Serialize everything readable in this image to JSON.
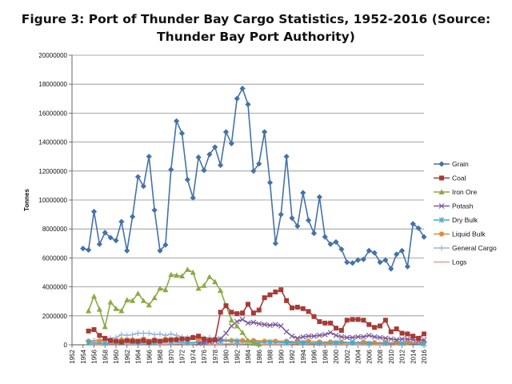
{
  "title_line1": "Figure 3: Port of Thunder Bay Cargo Statistics, 1952-2016 (Source:",
  "title_line2": "Thunder Bay Port Authority)",
  "chart_data": {
    "type": "line",
    "title": "Figure 3: Port of Thunder Bay Cargo Statistics, 1952-2016 (Source: Thunder Bay Port Authority)",
    "xlabel": "",
    "ylabel": "Tonnes",
    "xlim": [
      1952,
      2016
    ],
    "ylim": [
      0,
      20000000
    ],
    "yticks": [
      0,
      2000000,
      4000000,
      6000000,
      8000000,
      10000000,
      12000000,
      14000000,
      16000000,
      18000000,
      20000000
    ],
    "ytick_labels": [
      "0",
      "2000000",
      "4000000",
      "6000000",
      "8000000",
      "10000000",
      "12000000",
      "14000000",
      "16000000",
      "18000000",
      "20000000"
    ],
    "xticks": [
      1952,
      1954,
      1956,
      1958,
      1960,
      1962,
      1964,
      1966,
      1968,
      1970,
      1972,
      1974,
      1976,
      1978,
      1980,
      1982,
      1984,
      1986,
      1988,
      1990,
      1992,
      1994,
      1996,
      1998,
      2000,
      2002,
      2004,
      2006,
      2008,
      2010,
      2012,
      2014,
      2016
    ],
    "xtick_labels": [
      "1952",
      "1954",
      "1956",
      "1958",
      "1960",
      "1962",
      "1964",
      "1966",
      "1968",
      "1970",
      "1972",
      "1974",
      "1976",
      "1978",
      "1980",
      "1982",
      "1984",
      "1986",
      "1988",
      "1990",
      "1992",
      "1994",
      "1996",
      "1998",
      "2000",
      "2002",
      "2004",
      "2006",
      "2008",
      "2010",
      "2012",
      "2014",
      "2016"
    ],
    "legend_position": "right",
    "series": [
      {
        "name": "Grain",
        "color": "#4472A8",
        "marker": "diamond",
        "x": [
          1954,
          1955,
          1956,
          1957,
          1958,
          1959,
          1960,
          1961,
          1962,
          1963,
          1964,
          1965,
          1966,
          1967,
          1968,
          1969,
          1970,
          1971,
          1972,
          1973,
          1974,
          1975,
          1976,
          1977,
          1978,
          1979,
          1980,
          1981,
          1982,
          1983,
          1984,
          1985,
          1986,
          1987,
          1988,
          1989,
          1990,
          1991,
          1992,
          1993,
          1994,
          1995,
          1996,
          1997,
          1998,
          1999,
          2000,
          2001,
          2002,
          2003,
          2004,
          2005,
          2006,
          2007,
          2008,
          2009,
          2010,
          2011,
          2012,
          2013,
          2014,
          2015,
          2016
        ],
        "values": [
          6650000,
          6550000,
          9200000,
          6950000,
          7750000,
          7400000,
          7200000,
          8500000,
          6500000,
          8850000,
          11600000,
          10950000,
          13000000,
          9300000,
          6500000,
          6900000,
          12100000,
          15450000,
          14600000,
          11400000,
          10150000,
          12950000,
          12050000,
          13150000,
          13650000,
          12400000,
          14700000,
          13900000,
          17000000,
          17700000,
          16600000,
          12000000,
          12500000,
          14700000,
          11200000,
          7000000,
          9000000,
          13000000,
          8750000,
          8200000,
          10500000,
          8600000,
          7700000,
          10200000,
          7450000,
          6950000,
          7100000,
          6600000,
          5700000,
          5650000,
          5850000,
          5900000,
          6500000,
          6350000,
          5700000,
          5850000,
          5250000,
          6250000,
          6500000,
          5400000,
          8350000,
          8050000,
          7450000
        ]
      },
      {
        "name": "Coal",
        "color": "#A83A35",
        "marker": "square",
        "x": [
          1955,
          1956,
          1957,
          1958,
          1959,
          1960,
          1961,
          1962,
          1963,
          1964,
          1965,
          1966,
          1967,
          1968,
          1969,
          1970,
          1971,
          1972,
          1973,
          1974,
          1975,
          1976,
          1977,
          1978,
          1979,
          1980,
          1981,
          1982,
          1983,
          1984,
          1985,
          1986,
          1987,
          1988,
          1989,
          1990,
          1991,
          1992,
          1993,
          1994,
          1995,
          1996,
          1997,
          1998,
          1999,
          2000,
          2001,
          2002,
          2003,
          2004,
          2005,
          2006,
          2007,
          2008,
          2009,
          2010,
          2011,
          2012,
          2013,
          2014,
          2015,
          2016
        ],
        "values": [
          950000,
          1050000,
          650000,
          450000,
          300000,
          250000,
          200000,
          300000,
          250000,
          250000,
          300000,
          200000,
          300000,
          250000,
          300000,
          350000,
          350000,
          400000,
          400000,
          500000,
          600000,
          400000,
          300000,
          350000,
          2250000,
          2700000,
          2250000,
          2150000,
          2200000,
          2800000,
          2200000,
          2400000,
          3250000,
          3450000,
          3650000,
          3800000,
          3050000,
          2550000,
          2600000,
          2500000,
          2300000,
          1950000,
          1600000,
          1500000,
          1500000,
          1150000,
          1000000,
          1700000,
          1750000,
          1750000,
          1700000,
          1400000,
          1200000,
          1300000,
          1700000,
          900000,
          1100000,
          800000,
          750000,
          600000,
          450000,
          750000
        ]
      },
      {
        "name": "Iron Ore",
        "color": "#8BAA45",
        "marker": "triangle",
        "x": [
          1955,
          1956,
          1957,
          1958,
          1959,
          1960,
          1961,
          1962,
          1963,
          1964,
          1965,
          1966,
          1967,
          1968,
          1969,
          1970,
          1971,
          1972,
          1973,
          1974,
          1975,
          1976,
          1977,
          1978,
          1979,
          1980,
          1981,
          1982,
          1983,
          1984,
          1985,
          1986
        ],
        "values": [
          2350000,
          3350000,
          2450000,
          1250000,
          2950000,
          2500000,
          2350000,
          3100000,
          3050000,
          3550000,
          3050000,
          2750000,
          3250000,
          3900000,
          3800000,
          4850000,
          4800000,
          4750000,
          5200000,
          5000000,
          3900000,
          4100000,
          4700000,
          4350000,
          3750000,
          2700000,
          1700000,
          1300000,
          850000,
          300000,
          100000,
          50000
        ]
      },
      {
        "name": "Potash",
        "color": "#7D5A9B",
        "marker": "x",
        "x": [
          1975,
          1976,
          1977,
          1978,
          1979,
          1980,
          1981,
          1982,
          1983,
          1984,
          1985,
          1986,
          1987,
          1988,
          1989,
          1990,
          1991,
          1992,
          1993,
          1994,
          1995,
          1996,
          1997,
          1998,
          1999,
          2000,
          2001,
          2002,
          2003,
          2004,
          2005,
          2006,
          2007,
          2008,
          2009,
          2010,
          2011,
          2012,
          2013,
          2014,
          2015,
          2016
        ],
        "values": [
          100000,
          150000,
          200000,
          250000,
          400000,
          800000,
          1300000,
          1600000,
          1750000,
          1500000,
          1550000,
          1450000,
          1400000,
          1350000,
          1400000,
          1300000,
          900000,
          600000,
          450000,
          550000,
          600000,
          600000,
          650000,
          700000,
          850000,
          650000,
          550000,
          500000,
          500000,
          550000,
          550000,
          650000,
          550000,
          500000,
          450000,
          400000,
          350000,
          400000,
          400000,
          350000,
          300000,
          350000
        ]
      },
      {
        "name": "Dry Bulk",
        "color": "#46AACB",
        "marker": "asterisk",
        "x": [
          1955,
          1958,
          1961,
          1964,
          1967,
          1970,
          1973,
          1976,
          1979,
          1982,
          1985,
          1988,
          1991,
          1994,
          1997,
          2000,
          2003,
          2006,
          2009,
          2012,
          2016
        ],
        "values": [
          150000,
          100000,
          200000,
          150000,
          150000,
          200000,
          150000,
          200000,
          250000,
          250000,
          150000,
          200000,
          150000,
          150000,
          100000,
          150000,
          150000,
          100000,
          100000,
          100000,
          50000
        ]
      },
      {
        "name": "Liquid Bulk",
        "color": "#E08C36",
        "marker": "circle",
        "x": [
          1955,
          1957,
          1959,
          1961,
          1963,
          1965,
          1967,
          1969,
          1971,
          1973,
          1975,
          1977,
          1979,
          1981,
          1983,
          1985,
          1987,
          1989,
          1991,
          1993,
          1995,
          1997,
          1999,
          2001,
          2003,
          2005,
          2007,
          2009,
          2011,
          2013,
          2016
        ],
        "values": [
          250000,
          250000,
          300000,
          350000,
          350000,
          400000,
          350000,
          400000,
          400000,
          350000,
          400000,
          350000,
          350000,
          300000,
          300000,
          300000,
          250000,
          250000,
          250000,
          200000,
          250000,
          200000,
          200000,
          200000,
          150000,
          200000,
          150000,
          150000,
          150000,
          150000,
          200000
        ]
      },
      {
        "name": "General Cargo",
        "color": "#9CB6DA",
        "marker": "plus",
        "x": [
          1955,
          1956,
          1957,
          1958,
          1959,
          1960,
          1961,
          1962,
          1963,
          1964,
          1965,
          1966,
          1967,
          1968,
          1969,
          1970,
          1971,
          1972,
          1973,
          1974,
          1975,
          1976,
          1977,
          1978,
          1979,
          1980,
          1982,
          1985,
          1988,
          1991,
          1994,
          1997,
          2000,
          2004,
          2008,
          2012,
          2016
        ],
        "values": [
          250000,
          300000,
          350000,
          300000,
          450000,
          500000,
          700000,
          650000,
          700000,
          800000,
          800000,
          800000,
          700000,
          750000,
          650000,
          750000,
          650000,
          550000,
          500000,
          550000,
          400000,
          450000,
          500000,
          450000,
          400000,
          350000,
          300000,
          250000,
          200000,
          150000,
          150000,
          100000,
          100000,
          100000,
          100000,
          100000,
          150000
        ]
      },
      {
        "name": "Logs",
        "color": "#E0A09C",
        "marker": "dash",
        "x": [
          1955,
          1958,
          1961,
          1964,
          1967,
          1970,
          1973,
          1976,
          1979,
          1982,
          1985,
          1988,
          1991,
          1994,
          1997,
          2000,
          2003,
          2006,
          2009,
          2012,
          2016
        ],
        "values": [
          50000,
          50000,
          100000,
          100000,
          50000,
          50000,
          100000,
          50000,
          50000,
          100000,
          50000,
          50000,
          50000,
          100000,
          50000,
          50000,
          50000,
          50000,
          50000,
          100000,
          50000
        ]
      }
    ]
  }
}
